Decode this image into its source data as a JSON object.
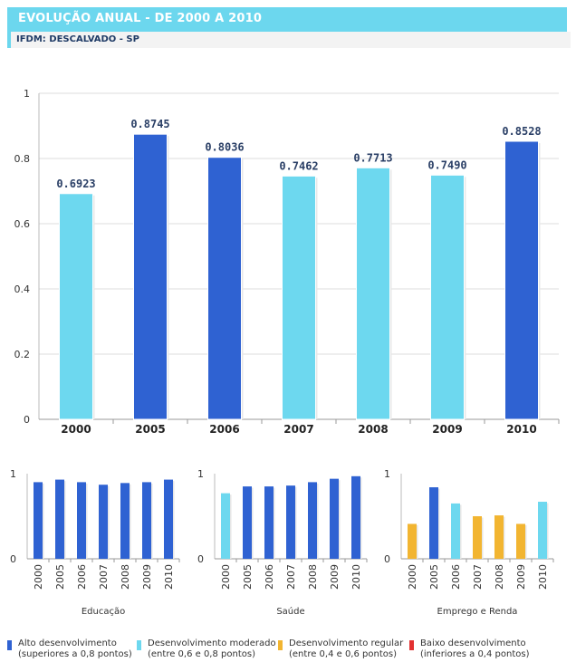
{
  "header": {
    "title": "EVOLUÇÃO ANUAL - DE 2000 A 2010",
    "subtitle": "IFDM: DESCALVADO - SP"
  },
  "colors": {
    "alto": "#2f62d2",
    "moderado": "#6dd8ef",
    "regular": "#f2b531",
    "baixo": "#e23131",
    "grid": "#dddddd"
  },
  "chart_data": [
    {
      "type": "bar",
      "categories": [
        "2000",
        "2005",
        "2006",
        "2007",
        "2008",
        "2009",
        "2010"
      ],
      "values": [
        0.6923,
        0.8745,
        0.8036,
        0.7462,
        0.7713,
        0.749,
        0.8528
      ],
      "data_labels": [
        "0.6923",
        "0.8745",
        "0.8036",
        "0.7462",
        "0.7713",
        "0.7490",
        "0.8528"
      ],
      "bar_colors": [
        "moderado",
        "alto",
        "alto",
        "moderado",
        "moderado",
        "moderado",
        "alto"
      ],
      "ylim": [
        0,
        1
      ],
      "yticks": [
        "0",
        "0.2",
        "0.4",
        "0.6",
        "0.8",
        "1"
      ],
      "grid": true
    },
    {
      "type": "bar",
      "title": "Educação",
      "categories": [
        "2000",
        "2005",
        "2006",
        "2007",
        "2008",
        "2009",
        "2010"
      ],
      "values": [
        0.9,
        0.93,
        0.9,
        0.87,
        0.89,
        0.9,
        0.93
      ],
      "bar_colors": [
        "alto",
        "alto",
        "alto",
        "alto",
        "alto",
        "alto",
        "alto"
      ],
      "ylim": [
        0,
        1
      ],
      "yticks": [
        "0",
        "1"
      ]
    },
    {
      "type": "bar",
      "title": "Saúde",
      "categories": [
        "2000",
        "2005",
        "2006",
        "2007",
        "2008",
        "2009",
        "2010"
      ],
      "values": [
        0.77,
        0.85,
        0.85,
        0.86,
        0.9,
        0.94,
        0.97
      ],
      "bar_colors": [
        "moderado",
        "alto",
        "alto",
        "alto",
        "alto",
        "alto",
        "alto"
      ],
      "ylim": [
        0,
        1
      ],
      "yticks": [
        "0",
        "1"
      ]
    },
    {
      "type": "bar",
      "title": "Emprego e Renda",
      "categories": [
        "2000",
        "2005",
        "2006",
        "2007",
        "2008",
        "2009",
        "2010"
      ],
      "values": [
        0.41,
        0.84,
        0.65,
        0.5,
        0.51,
        0.41,
        0.67
      ],
      "bar_colors": [
        "regular",
        "alto",
        "moderado",
        "regular",
        "regular",
        "regular",
        "moderado"
      ],
      "ylim": [
        0,
        1
      ],
      "yticks": [
        "0",
        "1"
      ]
    }
  ],
  "legend": [
    {
      "line1": "Alto desenvolvimento",
      "line2": "(superiores a 0,8 pontos)",
      "color_key": "alto"
    },
    {
      "line1": "Desenvolvimento moderado",
      "line2": "(entre 0,6 e 0,8 pontos)",
      "color_key": "moderado"
    },
    {
      "line1": "Desenvolvimento regular",
      "line2": "(entre 0,4 e 0,6 pontos)",
      "color_key": "regular"
    },
    {
      "line1": "Baixo desenvolvimento",
      "line2": "(inferiores a 0,4 pontos)",
      "color_key": "baixo"
    }
  ]
}
